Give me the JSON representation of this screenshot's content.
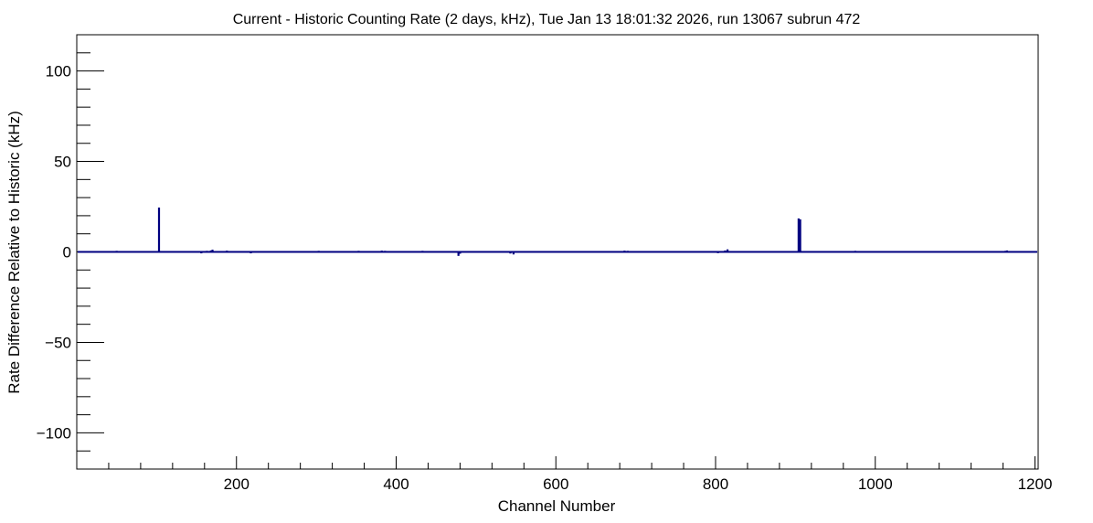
{
  "chart_data": {
    "type": "bar",
    "title": "Current - Historic Counting Rate (2 days, kHz), Tue Jan 13 18:01:32 2026, run 13067 subrun 472",
    "xlabel": "Channel Number",
    "ylabel": "Rate Difference Relative to Historic (kHz)",
    "xlim": [
      0,
      1204
    ],
    "ylim": [
      -120,
      120
    ],
    "x_ticks": [
      200,
      400,
      600,
      800,
      1000,
      1200
    ],
    "y_ticks": [
      -100,
      -50,
      0,
      50,
      100
    ],
    "grid": false,
    "legend": "none",
    "series": [
      {
        "color": "#000080",
        "baseline": 0,
        "points": [
          {
            "x": 38,
            "y": 0.5
          },
          {
            "x": 50,
            "y": 0.6
          },
          {
            "x": 57,
            "y": 0.5
          },
          {
            "x": 74,
            "y": 0.4
          },
          {
            "x": 103,
            "y": 24.5
          },
          {
            "x": 123,
            "y": 0.5
          },
          {
            "x": 138,
            "y": 0.4
          },
          {
            "x": 156,
            "y": -0.8
          },
          {
            "x": 163,
            "y": 0.6
          },
          {
            "x": 168,
            "y": 0.8
          },
          {
            "x": 170,
            "y": 1.2
          },
          {
            "x": 183,
            "y": 0.5
          },
          {
            "x": 188,
            "y": 0.7
          },
          {
            "x": 218,
            "y": -0.8
          },
          {
            "x": 240,
            "y": 0.5
          },
          {
            "x": 268,
            "y": 0.5
          },
          {
            "x": 283,
            "y": 0.5
          },
          {
            "x": 303,
            "y": 0.6
          },
          {
            "x": 330,
            "y": 0.5
          },
          {
            "x": 350,
            "y": 0.5
          },
          {
            "x": 353,
            "y": 0.6
          },
          {
            "x": 382,
            "y": 0.7
          },
          {
            "x": 386,
            "y": 0.6
          },
          {
            "x": 428,
            "y": 0.5
          },
          {
            "x": 433,
            "y": 0.6
          },
          {
            "x": 442,
            "y": 0.5
          },
          {
            "x": 478,
            "y": -2.2
          },
          {
            "x": 480,
            "y": -1.0
          },
          {
            "x": 543,
            "y": -0.9
          },
          {
            "x": 547,
            "y": -1.4
          },
          {
            "x": 563,
            "y": 0.5
          },
          {
            "x": 583,
            "y": 0.5
          },
          {
            "x": 658,
            "y": 0.5
          },
          {
            "x": 686,
            "y": 0.7
          },
          {
            "x": 690,
            "y": 0.6
          },
          {
            "x": 722,
            "y": 0.5
          },
          {
            "x": 772,
            "y": 0.5
          },
          {
            "x": 803,
            "y": -0.7
          },
          {
            "x": 812,
            "y": 0.8
          },
          {
            "x": 815,
            "y": 1.4
          },
          {
            "x": 833,
            "y": 0.5
          },
          {
            "x": 850,
            "y": 0.5
          },
          {
            "x": 866,
            "y": 0.5
          },
          {
            "x": 904,
            "y": 18.5
          },
          {
            "x": 906,
            "y": 18.0
          },
          {
            "x": 930,
            "y": 0.5
          },
          {
            "x": 945,
            "y": 0.4
          },
          {
            "x": 963,
            "y": 0.5
          },
          {
            "x": 975,
            "y": 0.6
          },
          {
            "x": 980,
            "y": 0.5
          },
          {
            "x": 1038,
            "y": 0.4
          },
          {
            "x": 1090,
            "y": 0.4
          },
          {
            "x": 1163,
            "y": 0.6
          },
          {
            "x": 1165,
            "y": 0.8
          },
          {
            "x": 1198,
            "y": -0.5
          }
        ]
      }
    ]
  }
}
